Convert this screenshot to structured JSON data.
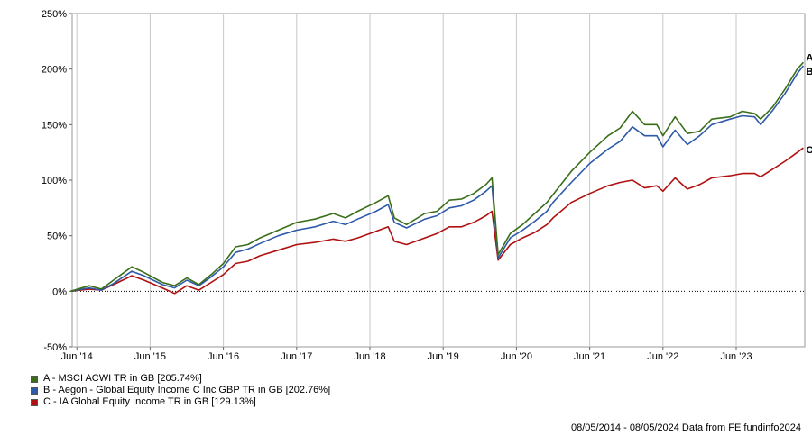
{
  "chart_data": {
    "type": "line",
    "ylim": [
      -50,
      250
    ],
    "yticks": [
      -50,
      0,
      50,
      100,
      150,
      200,
      250
    ],
    "ytick_labels": [
      "-50%",
      "0%",
      "50%",
      "100%",
      "150%",
      "200%",
      "250%"
    ],
    "xticks": [
      "2014-06",
      "2015-06",
      "2016-06",
      "2017-06",
      "2018-06",
      "2019-06",
      "2020-06",
      "2021-06",
      "2022-06",
      "2023-06"
    ],
    "xtick_labels": [
      "Jun '14",
      "Jun '15",
      "Jun '16",
      "Jun '17",
      "Jun '18",
      "Jun '19",
      "Jun '20",
      "Jun '21",
      "Jun '22",
      "Jun '23"
    ],
    "x_range": [
      "2014-05-08",
      "2024-05-08"
    ],
    "grid": "vertical",
    "zero_line": "dotted",
    "series": [
      {
        "name": "A - MSCI ACWI TR in GB [205.74%]",
        "end_label": "A",
        "color": "#3a6e19",
        "x": [
          "2014-05",
          "2014-08",
          "2014-10",
          "2014-12",
          "2015-03",
          "2015-05",
          "2015-08",
          "2015-10",
          "2015-12",
          "2016-02",
          "2016-04",
          "2016-06",
          "2016-08",
          "2016-10",
          "2016-12",
          "2017-03",
          "2017-06",
          "2017-09",
          "2017-12",
          "2018-02",
          "2018-04",
          "2018-07",
          "2018-09",
          "2018-10",
          "2018-12",
          "2019-03",
          "2019-05",
          "2019-07",
          "2019-09",
          "2019-11",
          "2020-01",
          "2020-02",
          "2020-03",
          "2020-05",
          "2020-07",
          "2020-09",
          "2020-11",
          "2020-12",
          "2021-03",
          "2021-06",
          "2021-09",
          "2021-11",
          "2022-01",
          "2022-03",
          "2022-05",
          "2022-06",
          "2022-08",
          "2022-10",
          "2022-12",
          "2023-02",
          "2023-05",
          "2023-07",
          "2023-09",
          "2023-10",
          "2023-12",
          "2024-02",
          "2024-04",
          "2024-05"
        ],
        "y": [
          0,
          5,
          2,
          10,
          22,
          17,
          8,
          5,
          12,
          6,
          15,
          25,
          40,
          42,
          48,
          55,
          62,
          65,
          70,
          66,
          72,
          80,
          86,
          66,
          60,
          70,
          72,
          82,
          83,
          88,
          96,
          102,
          33,
          52,
          60,
          70,
          80,
          87,
          108,
          125,
          140,
          147,
          162,
          150,
          150,
          140,
          157,
          142,
          144,
          155,
          157,
          162,
          160,
          155,
          166,
          182,
          200,
          206
        ]
      },
      {
        "name": "B - Aegon - Global Equity Income C Inc GBP TR in GB [202.76%]",
        "end_label": "B",
        "color": "#2f5aa8",
        "x": [
          "2014-05",
          "2014-08",
          "2014-10",
          "2014-12",
          "2015-03",
          "2015-05",
          "2015-08",
          "2015-10",
          "2015-12",
          "2016-02",
          "2016-04",
          "2016-06",
          "2016-08",
          "2016-10",
          "2016-12",
          "2017-03",
          "2017-06",
          "2017-09",
          "2017-12",
          "2018-02",
          "2018-04",
          "2018-07",
          "2018-09",
          "2018-10",
          "2018-12",
          "2019-03",
          "2019-05",
          "2019-07",
          "2019-09",
          "2019-11",
          "2020-01",
          "2020-02",
          "2020-03",
          "2020-05",
          "2020-07",
          "2020-09",
          "2020-11",
          "2020-12",
          "2021-03",
          "2021-06",
          "2021-09",
          "2021-11",
          "2022-01",
          "2022-03",
          "2022-05",
          "2022-06",
          "2022-08",
          "2022-10",
          "2022-12",
          "2023-02",
          "2023-05",
          "2023-07",
          "2023-09",
          "2023-10",
          "2023-12",
          "2024-02",
          "2024-04",
          "2024-05"
        ],
        "y": [
          0,
          3,
          1,
          7,
          18,
          14,
          6,
          3,
          10,
          5,
          13,
          22,
          35,
          38,
          43,
          50,
          55,
          58,
          63,
          60,
          65,
          72,
          78,
          62,
          57,
          65,
          68,
          75,
          77,
          82,
          90,
          95,
          30,
          48,
          55,
          63,
          72,
          80,
          98,
          115,
          128,
          135,
          148,
          140,
          140,
          130,
          145,
          132,
          140,
          150,
          155,
          158,
          157,
          150,
          163,
          178,
          196,
          203
        ]
      },
      {
        "name": "C - IA Global Equity Income TR in GB [129.13%]",
        "end_label": "C",
        "color": "#b01010",
        "x": [
          "2014-05",
          "2014-08",
          "2014-10",
          "2014-12",
          "2015-03",
          "2015-05",
          "2015-08",
          "2015-10",
          "2015-12",
          "2016-02",
          "2016-04",
          "2016-06",
          "2016-08",
          "2016-10",
          "2016-12",
          "2017-03",
          "2017-06",
          "2017-09",
          "2017-12",
          "2018-02",
          "2018-04",
          "2018-07",
          "2018-09",
          "2018-10",
          "2018-12",
          "2019-03",
          "2019-05",
          "2019-07",
          "2019-09",
          "2019-11",
          "2020-01",
          "2020-02",
          "2020-03",
          "2020-05",
          "2020-07",
          "2020-09",
          "2020-11",
          "2020-12",
          "2021-03",
          "2021-06",
          "2021-09",
          "2021-11",
          "2022-01",
          "2022-03",
          "2022-05",
          "2022-06",
          "2022-08",
          "2022-10",
          "2022-12",
          "2023-02",
          "2023-05",
          "2023-07",
          "2023-09",
          "2023-10",
          "2023-12",
          "2024-02",
          "2024-04",
          "2024-05"
        ],
        "y": [
          0,
          2,
          1,
          6,
          14,
          10,
          3,
          -2,
          5,
          1,
          8,
          15,
          25,
          27,
          32,
          37,
          42,
          44,
          47,
          45,
          48,
          54,
          58,
          45,
          42,
          48,
          52,
          58,
          58,
          62,
          68,
          72,
          28,
          42,
          48,
          53,
          60,
          66,
          80,
          88,
          95,
          98,
          100,
          93,
          95,
          90,
          102,
          92,
          96,
          102,
          104,
          106,
          106,
          103,
          110,
          117,
          125,
          129
        ]
      }
    ],
    "legend": [
      "A - MSCI ACWI TR in GB [205.74%]",
      "B - Aegon - Global Equity Income C Inc GBP TR in GB [202.76%]",
      "C - IA Global Equity Income TR in GB [129.13%]"
    ],
    "legend_position": "bottom-left",
    "footer": "08/05/2014 - 08/05/2024 Data from FE fundinfo2024"
  }
}
